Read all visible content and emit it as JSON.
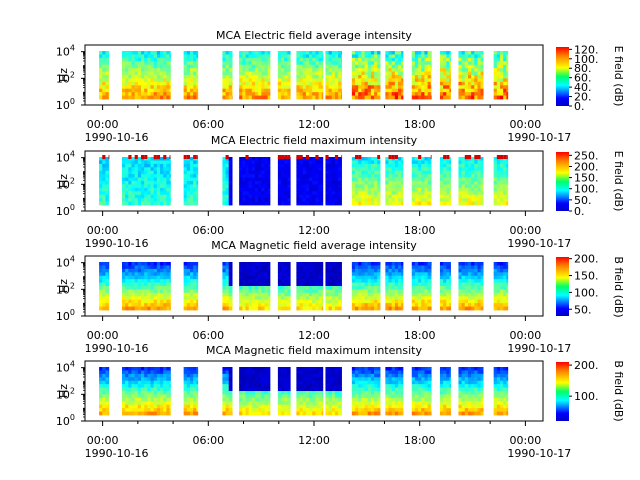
{
  "chart_data": [
    {
      "type": "heatmap",
      "title": "MCA  Electric field average intensity",
      "ylabel": "Hz",
      "y_ticks": [
        "10^4",
        "10^2",
        "10^0"
      ],
      "y_scale": "log",
      "ylim": [
        1,
        31623
      ],
      "x_ticks": [
        "00:00",
        "06:00",
        "12:00",
        "18:00",
        "00:00"
      ],
      "x_dates": [
        "1990-10-16",
        "",
        "",
        "",
        "1990-10-17"
      ],
      "xlim_hours": [
        -1,
        25
      ],
      "colorbar_label": "E field (dB)",
      "colorbar_ticks": [
        "120.",
        "100.",
        "80.",
        "60.",
        "40.",
        "20.",
        "0."
      ],
      "colorbar_range": [
        0,
        125
      ],
      "base_level": "mid",
      "data_gaps": "white",
      "noise_flags": false
    },
    {
      "type": "heatmap",
      "title": "MCA  Electric field maximum intensity",
      "ylabel": "Hz",
      "y_ticks": [
        "10^4",
        "10^2",
        "10^0"
      ],
      "y_scale": "log",
      "ylim": [
        1,
        31623
      ],
      "x_ticks": [
        "00:00",
        "06:00",
        "12:00",
        "18:00",
        "00:00"
      ],
      "x_dates": [
        "1990-10-16",
        "",
        "",
        "",
        "1990-10-17"
      ],
      "xlim_hours": [
        -1,
        25
      ],
      "colorbar_label": "E field (dB)",
      "colorbar_ticks": [
        "250.",
        "200.",
        "150.",
        "100.",
        "50.",
        "0."
      ],
      "colorbar_range": [
        0,
        265
      ],
      "base_level": "lowmax",
      "data_gaps": "white",
      "noise_flags": true
    },
    {
      "type": "heatmap",
      "title": "MCA  Magnetic field average intensity",
      "ylabel": "Hz",
      "y_ticks": [
        "10^4",
        "10^2",
        "10^0"
      ],
      "y_scale": "log",
      "ylim": [
        1,
        31623
      ],
      "x_ticks": [
        "00:00",
        "06:00",
        "12:00",
        "18:00",
        "00:00"
      ],
      "x_dates": [
        "1990-10-16",
        "",
        "",
        "",
        "1990-10-17"
      ],
      "xlim_hours": [
        -1,
        25
      ],
      "colorbar_label": "B field (dB)",
      "colorbar_ticks": [
        "200.",
        "150.",
        "100.",
        "50."
      ],
      "colorbar_range": [
        30,
        205
      ],
      "base_level": "bfield",
      "data_gaps": "white",
      "noise_flags": false
    },
    {
      "type": "heatmap",
      "title": "MCA  Magnetic field maximum intensity",
      "ylabel": "Hz",
      "y_ticks": [
        "10^4",
        "10^2",
        "10^0"
      ],
      "y_scale": "log",
      "ylim": [
        1,
        31623
      ],
      "x_ticks": [
        "00:00",
        "06:00",
        "12:00",
        "18:00",
        "00:00"
      ],
      "x_dates": [
        "1990-10-16",
        "",
        "",
        "",
        "1990-10-17"
      ],
      "xlim_hours": [
        -1,
        25
      ],
      "colorbar_label": "B field (dB)",
      "colorbar_ticks": [
        "200.",
        "100."
      ],
      "colorbar_range": [
        20,
        210
      ],
      "base_level": "bfield",
      "data_gaps": "white",
      "noise_flags": false
    }
  ],
  "data_intervals_hours": [
    [
      -0.2,
      0.35
    ],
    [
      1.1,
      3.85
    ],
    [
      4.6,
      5.4
    ],
    [
      6.8,
      7.35
    ],
    [
      7.75,
      9.5
    ],
    [
      9.95,
      10.65
    ],
    [
      11.0,
      12.5
    ],
    [
      12.65,
      13.55
    ],
    [
      14.15,
      15.75
    ],
    [
      16.05,
      17.05
    ],
    [
      17.55,
      18.65
    ],
    [
      19.15,
      19.75
    ],
    [
      20.2,
      21.6
    ],
    [
      22.2,
      23.0
    ]
  ]
}
